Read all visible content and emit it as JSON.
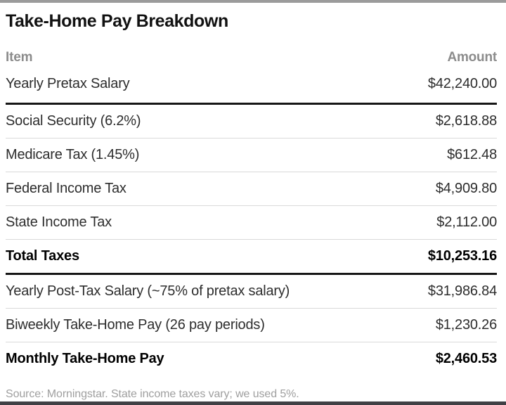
{
  "page": {
    "title": "Take-Home Pay Breakdown",
    "source_note": "Source: Morningstar. State income taxes vary; we used 5%."
  },
  "table": {
    "columns": {
      "item": "Item",
      "amount": "Amount"
    },
    "rows": [
      {
        "item": "Yearly Pretax Salary",
        "amount": "$42,240.00",
        "bold": false,
        "heavy_rule_below": true,
        "first": true
      },
      {
        "item": "Social Security (6.2%)",
        "amount": "$2,618.88",
        "bold": false,
        "heavy_rule_below": false
      },
      {
        "item": "Medicare Tax (1.45%)",
        "amount": "$612.48",
        "bold": false,
        "heavy_rule_below": false
      },
      {
        "item": "Federal Income Tax",
        "amount": "$4,909.80",
        "bold": false,
        "heavy_rule_below": false
      },
      {
        "item": "State Income Tax",
        "amount": "$2,112.00",
        "bold": false,
        "heavy_rule_below": false
      },
      {
        "item": "Total Taxes",
        "amount": "$10,253.16",
        "bold": true,
        "heavy_rule_below": true
      },
      {
        "item": "Yearly Post-Tax Salary (~75% of pretax salary)",
        "amount": "$31,986.84",
        "bold": false,
        "heavy_rule_below": false
      },
      {
        "item": "Biweekly Take-Home Pay (26 pay periods)",
        "amount": "$1,230.26",
        "bold": false,
        "heavy_rule_below": false
      },
      {
        "item": "Monthly Take-Home Pay",
        "amount": "$2,460.53",
        "bold": true,
        "heavy_rule_below": false,
        "last": true
      }
    ]
  },
  "colors": {
    "top_bar": "#9b9b9b",
    "bottom_bar": "#404045",
    "heavy_rule": "#161616",
    "light_rule": "#d9d9d9",
    "header_text": "#8c8c8c",
    "body_text": "#2d2d2d",
    "source_text": "#9f9f9f"
  },
  "chart_data": {
    "type": "table",
    "title": "Take-Home Pay Breakdown",
    "columns": [
      "Item",
      "Amount"
    ],
    "rows": [
      [
        "Yearly Pretax Salary",
        42240.0
      ],
      [
        "Social Security (6.2%)",
        2618.88
      ],
      [
        "Medicare Tax (1.45%)",
        612.48
      ],
      [
        "Federal Income Tax",
        4909.8
      ],
      [
        "State Income Tax",
        2112.0
      ],
      [
        "Total Taxes",
        10253.16
      ],
      [
        "Yearly Post-Tax Salary (~75% of pretax salary)",
        31986.84
      ],
      [
        "Biweekly Take-Home Pay (26 pay periods)",
        1230.26
      ],
      [
        "Monthly Take-Home Pay",
        2460.53
      ]
    ],
    "annotations": [
      "Source: Morningstar. State income taxes vary; we used 5%."
    ]
  }
}
